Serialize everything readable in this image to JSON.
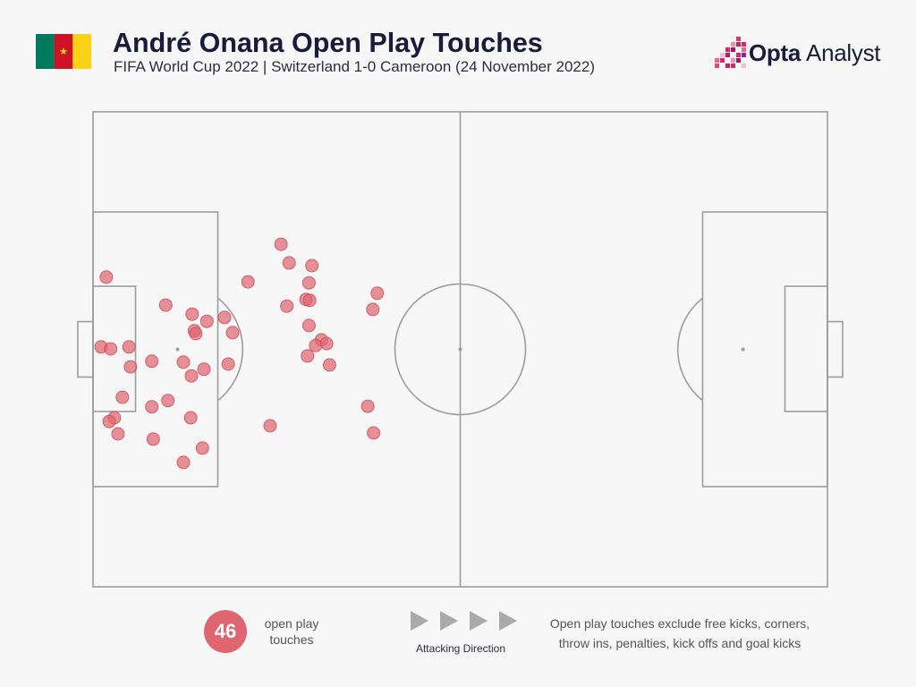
{
  "header": {
    "brand": {
      "name_bold": "Opta",
      "name_regular": "Analyst"
    }
  },
  "icons": {
    "flag": "cameroon-flag-icon",
    "logo": "opta-pixel-logo-icon",
    "direction": "play-arrow-icon"
  },
  "colors": {
    "background": "#f7f7f7",
    "title": "#1b1a3a",
    "text": "#2e2e36",
    "text_muted": "#555555",
    "pitch_lines": "#9d9d9d",
    "touch": "#df6670",
    "touch_edge": "#cc4f5a",
    "arrows": "#aaaaaa",
    "flag_green": "#007a5e",
    "flag_red": "#ce1126",
    "flag_yellow": "#fcd116"
  },
  "chart_data": {
    "type": "scatter",
    "title": "André Onana Open Play Touches",
    "subtitle": "FIFA World Cup 2022 | Switzerland 1-0 Cameroon (24 November 2022)",
    "xlim": [
      0,
      100
    ],
    "ylim": [
      0,
      100
    ],
    "grid": false,
    "x": [
      1.8,
      1.1,
      2.4,
      4.9,
      5.1,
      4.0,
      2.9,
      2.2,
      3.4,
      9.9,
      13.5,
      15.5,
      13.8,
      14.0,
      8.0,
      12.3,
      15.1,
      13.4,
      17.9,
      19.0,
      18.4,
      10.2,
      8.0,
      13.3,
      8.2,
      14.9,
      12.3,
      21.1,
      25.6,
      26.7,
      29.8,
      29.4,
      29.0,
      29.5,
      26.4,
      29.4,
      31.1,
      31.8,
      30.3,
      29.2,
      32.2,
      24.1,
      38.7,
      38.1,
      37.4,
      38.2
    ],
    "y": [
      65.2,
      50.5,
      50.1,
      50.5,
      46.3,
      39.9,
      35.6,
      34.8,
      32.2,
      59.3,
      57.4,
      55.9,
      53.9,
      53.3,
      47.5,
      47.3,
      45.8,
      44.4,
      56.7,
      53.5,
      46.9,
      39.2,
      37.9,
      35.6,
      31.1,
      29.2,
      26.2,
      64.2,
      72.1,
      68.2,
      67.6,
      64.0,
      60.5,
      60.3,
      59.1,
      55.0,
      52.0,
      51.2,
      50.8,
      48.6,
      46.7,
      33.9,
      61.8,
      58.4,
      38.0,
      32.4
    ]
  },
  "legend": {
    "count": "46",
    "count_label": [
      "open play",
      "touches"
    ],
    "direction_label": "Attacking Direction",
    "note": [
      "Open play touches exclude free kicks, corners,",
      "throw ins, penalties, kick offs and goal kicks"
    ]
  }
}
